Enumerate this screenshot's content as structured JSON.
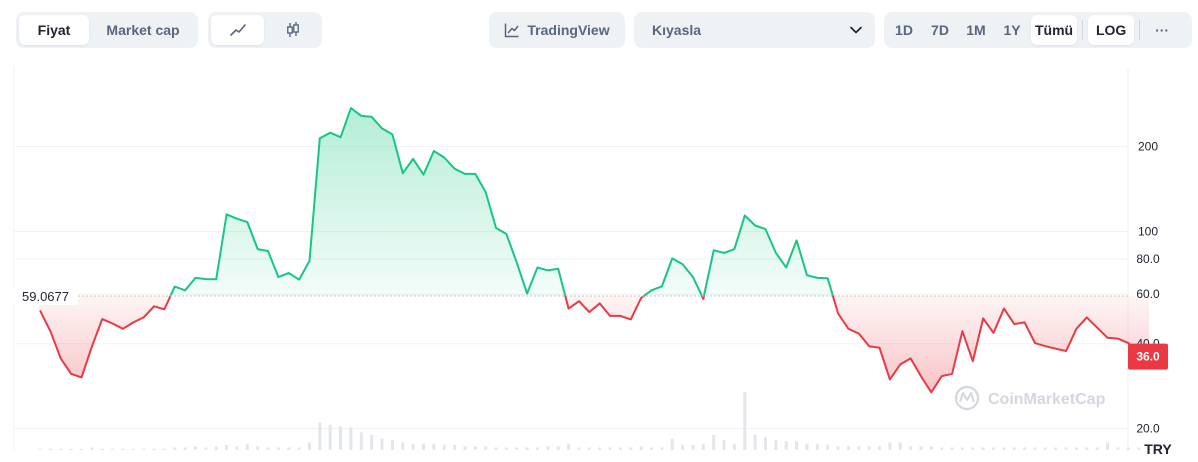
{
  "toolbar": {
    "type_tabs": [
      {
        "label": "Fiyat",
        "active": true
      },
      {
        "label": "Market cap",
        "active": false
      }
    ],
    "style_tabs": [
      {
        "icon": "line-chart-icon",
        "active": true
      },
      {
        "icon": "candlestick-icon",
        "active": false
      }
    ],
    "tradingview_label": "TradingView",
    "compare": {
      "label": "Kıyasla",
      "icon": "chevron-down-icon"
    },
    "ranges": [
      "1D",
      "7D",
      "1M",
      "1Y",
      "Tümü"
    ],
    "active_range": "Tümü",
    "log_label": "LOG",
    "more_label": "···"
  },
  "colors": {
    "up": "#16c784",
    "down": "#ea3943",
    "grid": "#eff2f5",
    "axis_text": "#58667e",
    "reference_line": "#c1c5cd",
    "watermark": "#d3d7de"
  },
  "chart_data": {
    "type": "area",
    "scale": "log",
    "currency": "TRY",
    "reference_value": 59.0677,
    "reference_label": "59.0677",
    "current_value": 36.0,
    "current_label": "36.0",
    "y_ticks": [
      20.0,
      40.0,
      60.0,
      80.0,
      100,
      200
    ],
    "y_tick_labels": [
      "20.0",
      "40.0",
      "60.0",
      "80.0",
      "100",
      "200"
    ],
    "ylim": [
      16.8,
      380
    ],
    "watermark": "CoinMarketCap",
    "series": [
      {
        "values": [
          52.5,
          44.3,
          35.5,
          31.3,
          30.4,
          39.0,
          48.9,
          47.2,
          45.2,
          47.6,
          49.6,
          54.3,
          53.0,
          63.8,
          61.9,
          68.5,
          67.8,
          67.7,
          115,
          111,
          108,
          86.6,
          85.3,
          68.9,
          71.3,
          67.5,
          78.7,
          214,
          224,
          216,
          274,
          257,
          255,
          232,
          221,
          161,
          181,
          159,
          193,
          183,
          167,
          160,
          160,
          138,
          103,
          98.0,
          77.5,
          60.3,
          74.6,
          72.8,
          73.8,
          53.3,
          56.6,
          51.8,
          55.6,
          50.2,
          50.2,
          48.8,
          58.1,
          61.9,
          63.9,
          80.3,
          76.6,
          68.9,
          57.7,
          85.8,
          84.0,
          86.6,
          114,
          105,
          102,
          84.0,
          74.6,
          93.0,
          70.0,
          68.5,
          68.3,
          51.2,
          45.2,
          43.5,
          39.2,
          38.7,
          29.9,
          33.8,
          35.5,
          30.7,
          26.9,
          30.7,
          31.3,
          44.3,
          34.7,
          49.2,
          43.7,
          53.3,
          47.0,
          47.6,
          40.2,
          39.2,
          38.4,
          37.7,
          45.2,
          49.6,
          45.6,
          42.0,
          41.7,
          40.2,
          37.4,
          36.0
        ]
      }
    ],
    "volume": [
      1,
      1,
      1,
      1,
      1,
      2,
      1,
      1,
      1,
      1,
      1,
      1,
      1,
      2,
      2,
      3,
      2,
      3,
      4,
      3,
      5,
      3,
      2,
      2,
      2,
      2,
      6,
      22,
      20,
      19,
      18,
      14,
      12,
      9,
      8,
      6,
      5,
      5,
      5,
      4,
      4,
      3,
      3,
      3,
      2,
      2,
      2,
      2,
      2,
      3,
      3,
      5,
      2,
      2,
      2,
      2,
      2,
      2,
      3,
      2,
      2,
      9,
      4,
      4,
      5,
      12,
      8,
      5,
      46,
      12,
      10,
      8,
      7,
      7,
      5,
      5,
      4,
      3,
      3,
      3,
      3,
      3,
      6,
      6,
      3,
      3,
      3,
      2,
      2,
      2,
      2,
      2,
      2,
      2,
      2,
      2,
      2,
      2,
      2,
      2,
      2,
      2,
      2,
      6,
      2,
      2,
      2,
      2
    ]
  }
}
